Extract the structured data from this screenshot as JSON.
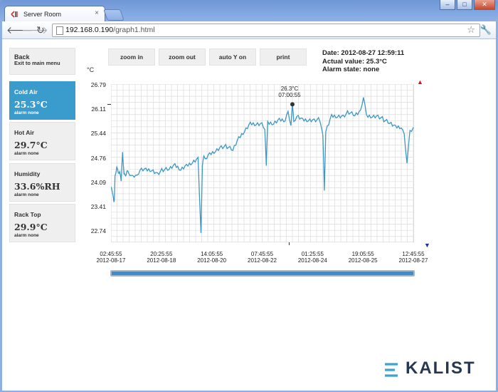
{
  "browser": {
    "tab_title": "Server Room",
    "tab_close": "×",
    "url_host": "192.168.0.190",
    "url_path": "/graph1.html"
  },
  "sidebar": {
    "back": {
      "label": "Back",
      "sub": "Exit to main menu"
    },
    "sensors": [
      {
        "label": "Cold Air",
        "value": "25.3°C",
        "status": "alarm none",
        "active": true
      },
      {
        "label": "Hot Air",
        "value": "29.7°C",
        "status": "alarm none",
        "active": false
      },
      {
        "label": "Humidity",
        "value": "33.6%RH",
        "status": "alarm none",
        "active": false
      },
      {
        "label": "Rack Top",
        "value": "29.9°C",
        "status": "alarm none",
        "active": false
      }
    ]
  },
  "controls": {
    "zoom_in": "zoom in",
    "zoom_out": "zoom out",
    "auto_y": "auto Y on",
    "print": "print"
  },
  "info": {
    "date": "Date: 2012-08-27 12:59:11",
    "actual": "Actual value: 25.3°C",
    "alarm": "Alarm state: none"
  },
  "tooltip": {
    "value": "26.3°C",
    "time": "07:00:55"
  },
  "brand": "KALIST",
  "colors": {
    "line": "#3d97c4",
    "grid": "#dcdcdc",
    "active": "#3a9ccc"
  },
  "chart_data": {
    "type": "line",
    "ylabel": "°C",
    "ylim": [
      22.74,
      26.79
    ],
    "y_ticks": [
      "26.79",
      "26.11",
      "25.44",
      "24.76",
      "24.09",
      "23.41",
      "22.74"
    ],
    "x_ticks": [
      {
        "time": "02:45:55",
        "date": "2012-08-17"
      },
      {
        "time": "20:25:55",
        "date": "2012-08-18"
      },
      {
        "time": "14:05:55",
        "date": "2012-08-20"
      },
      {
        "time": "07:45:55",
        "date": "2012-08-22"
      },
      {
        "time": "01:25:55",
        "date": "2012-08-24"
      },
      {
        "time": "19:05:55",
        "date": "2012-08-25"
      },
      {
        "time": "12:45:55",
        "date": "2012-08-27"
      }
    ],
    "xlim_days": [
      0,
      10.417
    ],
    "series": [
      {
        "x": [
          0,
          0.05,
          0.1,
          0.12,
          0.14,
          0.2,
          0.25,
          0.3,
          0.35,
          0.4,
          0.45,
          0.5,
          0.55,
          0.6,
          0.7,
          0.8,
          0.9,
          1.0,
          1.2,
          1.4,
          1.6,
          1.8,
          2.0,
          2.2,
          2.4,
          2.6,
          2.8,
          3.0,
          3.1,
          3.15,
          3.2,
          3.3,
          3.4,
          3.6,
          3.8,
          4.0,
          4.2,
          4.4,
          4.6,
          4.8,
          5.0,
          5.2,
          5.3,
          5.35,
          5.4,
          5.6,
          5.8,
          6.0,
          6.1,
          6.2,
          6.25,
          6.3,
          6.4,
          6.6,
          6.8,
          7.0,
          7.2,
          7.3,
          7.35,
          7.4,
          7.6,
          7.8,
          8.0,
          8.2,
          8.4,
          8.6,
          8.7,
          8.8,
          9.0,
          9.2,
          9.4,
          9.6,
          9.8,
          10.0,
          10.1,
          10.2,
          10.3,
          10.417
        ],
        "y": [
          24.2,
          24.0,
          23.7,
          23.9,
          24.4,
          24.7,
          24.5,
          24.6,
          24.3,
          25.0,
          24.5,
          24.4,
          24.6,
          24.5,
          24.5,
          24.4,
          24.4,
          24.6,
          24.6,
          24.6,
          24.5,
          24.6,
          24.6,
          24.7,
          24.6,
          24.7,
          24.8,
          24.9,
          23.0,
          24.7,
          24.9,
          24.9,
          25.0,
          25.1,
          25.2,
          25.2,
          25.1,
          25.4,
          25.6,
          25.8,
          25.8,
          25.8,
          25.7,
          24.7,
          25.8,
          25.8,
          25.9,
          25.9,
          26.1,
          25.8,
          26.3,
          25.8,
          26.0,
          25.9,
          25.9,
          25.9,
          25.9,
          25.5,
          24.0,
          25.6,
          26.0,
          26.0,
          26.0,
          26.1,
          26.0,
          26.1,
          26.5,
          26.0,
          26.0,
          26.0,
          25.9,
          25.8,
          25.7,
          25.7,
          25.5,
          24.8,
          25.6,
          25.7
        ]
      }
    ]
  }
}
